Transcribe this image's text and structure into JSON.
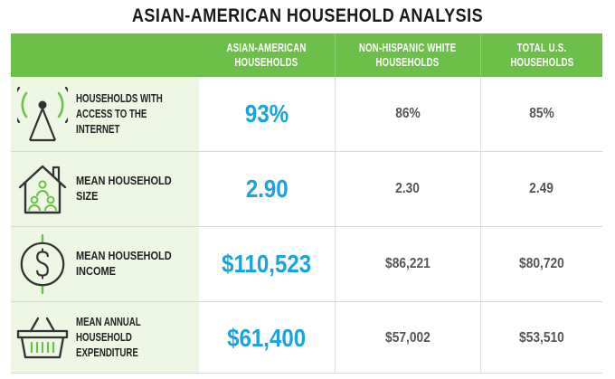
{
  "title": "ASIAN-AMERICAN HOUSEHOLD ANALYSIS",
  "columns": [
    {
      "line1": "ASIAN-AMERICAN",
      "line2": "HOUSEHOLDS"
    },
    {
      "line1": "NON-HISPANIC WHITE",
      "line2": "HOUSEHOLDS"
    },
    {
      "line1": "TOTAL U.S.",
      "line2": "HOUSEHOLDS"
    }
  ],
  "colors": {
    "header_green": "#6cc04a",
    "highlight_blue": "#1aa3dc",
    "label_bg": "#eef6e4"
  },
  "rows": [
    {
      "icon": "wifi-antenna-icon",
      "line1": "HOUSEHOLDS WITH",
      "line2": "ACCESS TO THE INTERNET",
      "asian": "93%",
      "white": "86%",
      "total": "85%"
    },
    {
      "icon": "house-family-icon",
      "line1": "MEAN HOUSEHOLD SIZE",
      "line2": "",
      "asian": "2.90",
      "white": "2.30",
      "total": "2.49"
    },
    {
      "icon": "dollar-coin-icon",
      "line1": "MEAN HOUSEHOLD INCOME",
      "line2": "",
      "asian": "$110,523",
      "white": "$86,221",
      "total": "$80,720"
    },
    {
      "icon": "shopping-basket-icon",
      "line1": "MEAN ANNUAL HOUSEHOLD",
      "line2": "EXPENDITURE",
      "asian": "$61,400",
      "white": "$57,002",
      "total": "$53,510"
    }
  ]
}
